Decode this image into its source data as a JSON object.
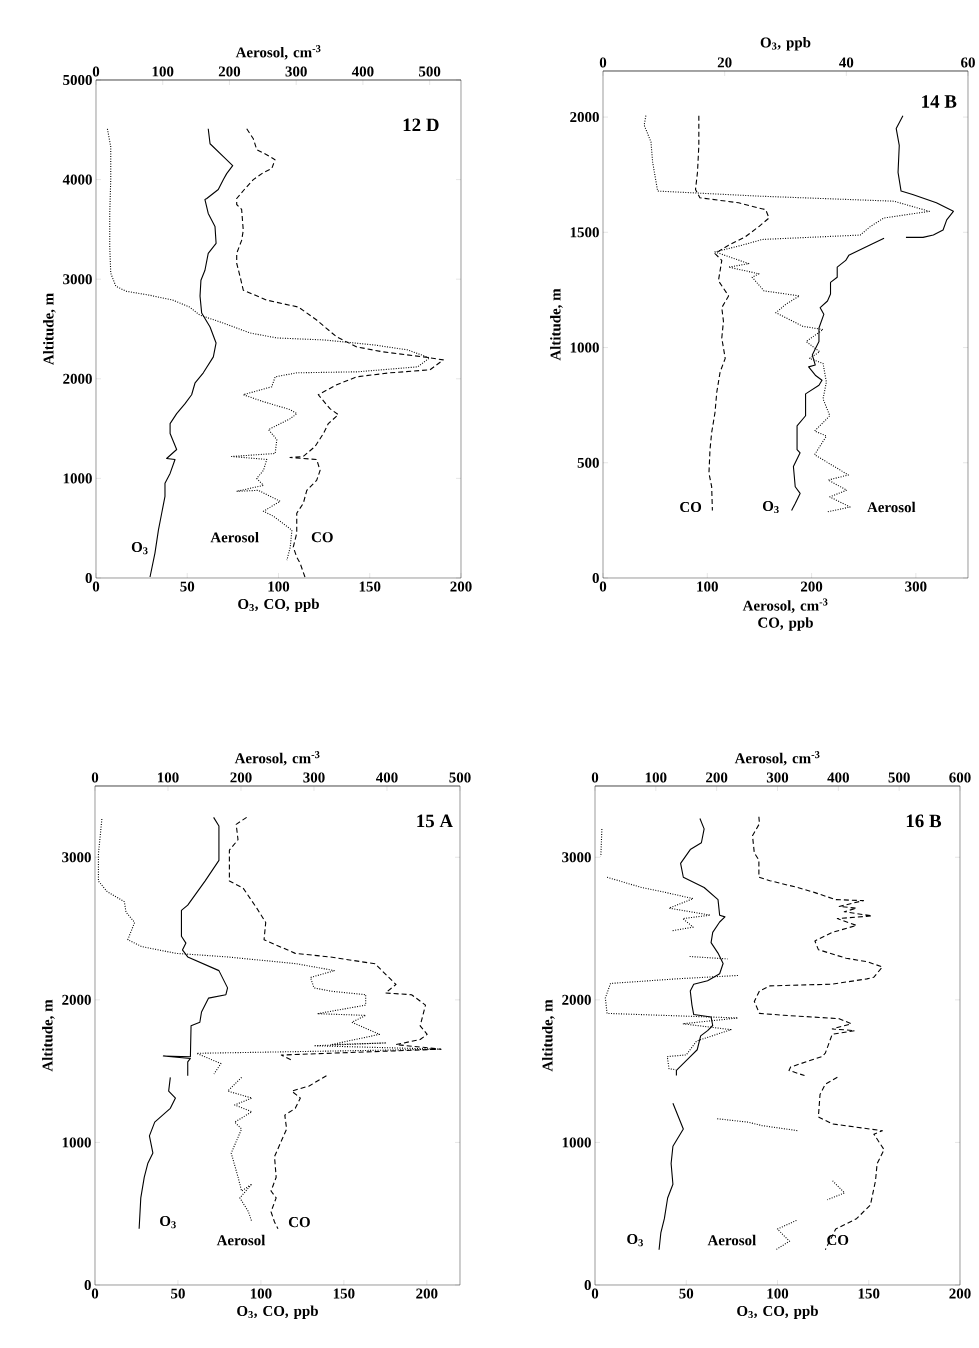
{
  "chart_data": [
    {
      "type": "line",
      "annotations": [
        "12 D"
      ],
      "xlabel": "O$_{3}$, CO, ppb",
      "x2label": "Aerosol, cm$^{-3}$",
      "ylabel": "Altitude, m",
      "xlim": [
        0,
        200
      ],
      "xticks": [
        0,
        50,
        100,
        150,
        200
      ],
      "x2lim": [
        0,
        547
      ],
      "x2ticks": [
        0,
        100,
        200,
        300,
        400,
        500
      ],
      "ylim": [
        0,
        5000
      ],
      "yticks": [
        0,
        1000,
        2000,
        3000,
        4000,
        5000
      ],
      "series": [
        {
          "name": "O$_{3}$",
          "color": "#000000",
          "line_style": "solid",
          "x": [
            61.5,
            62.5,
            69.8,
            74.9,
            71.6,
            69.8,
            67.0,
            60.7,
            59.7,
            61.5,
            65.2,
            65.8,
            61.5,
            59.7,
            57.5,
            57.0,
            57.9,
            62.5,
            65.8,
            64.3,
            58.8,
            54.3,
            52.4,
            48.8,
            44.2,
            40.6,
            40.6,
            44.2,
            38.7,
            43.3,
            40.6,
            37.8,
            37.8,
            36.0,
            34.2,
            32.3,
            29.6
          ],
          "values": [
            4510,
            4360,
            4230,
            4140,
            4060,
            4000,
            3900,
            3810,
            3800,
            3660,
            3530,
            3360,
            3260,
            3090,
            2990,
            2830,
            2660,
            2520,
            2360,
            2220,
            2060,
            1960,
            1840,
            1750,
            1650,
            1550,
            1450,
            1290,
            1200,
            1190,
            1050,
            950,
            820,
            650,
            480,
            250,
            10
          ]
        },
        {
          "name": "CO",
          "color": "#000000",
          "line_style": "dashed",
          "x": [
            82.6,
            86.2,
            88.1,
            93.5,
            98.1,
            96.3,
            91.7,
            86.2,
            81.7,
            77.1,
            77.1,
            79.8,
            80.7,
            79.8,
            77.1,
            77.1,
            78.9,
            80.7,
            93.5,
            110.9,
            120.9,
            131.9,
            142.9,
            157.4,
            179.4,
            190.3,
            183.0,
            161.1,
            142.9,
            131.9,
            121.8,
            128.2,
            132.8,
            127.3,
            124.6,
            120.0,
            113.6,
            106.3,
            120.9,
            122.8,
            120.9,
            115.5,
            113.6,
            110.0,
            110.0,
            108.1,
            110.0,
            111.8,
            114.5
          ],
          "values": [
            4510,
            4410,
            4300,
            4250,
            4200,
            4110,
            4070,
            4000,
            3910,
            3810,
            3750,
            3700,
            3490,
            3390,
            3260,
            3160,
            3030,
            2890,
            2790,
            2720,
            2590,
            2420,
            2320,
            2270,
            2220,
            2190,
            2090,
            2060,
            2020,
            1940,
            1840,
            1700,
            1640,
            1550,
            1450,
            1320,
            1220,
            1210,
            1190,
            1080,
            980,
            880,
            750,
            650,
            450,
            310,
            210,
            150,
            10
          ]
        },
        {
          "name": "Aerosol",
          "color": "#000000",
          "line_style": "dotted",
          "axis": "x2",
          "x": [
            17.1,
            22.1,
            22.1,
            20.6,
            20.6,
            22.1,
            29.7,
            44.7,
            79.9,
            115.1,
            140.3,
            155.4,
            190.6,
            230.8,
            271.0,
            341.4,
            416.8,
            467.0,
            499.8,
            482.1,
            391.6,
            301.1,
            268.5,
            263.4,
            220.7,
            250.9,
            291.1,
            301.1,
            291.1,
            258.4,
            271.0,
            268.5,
            203.1,
            255.9,
            250.9,
            240.8,
            250.9,
            210.6,
            243.3,
            276.0,
            250.9,
            266.0,
            293.6,
            291.1,
            286.1
          ],
          "values": [
            4510,
            4330,
            4000,
            3660,
            3330,
            3060,
            2930,
            2880,
            2840,
            2790,
            2720,
            2640,
            2560,
            2460,
            2410,
            2390,
            2340,
            2290,
            2210,
            2120,
            2070,
            2060,
            2020,
            1920,
            1840,
            1770,
            1690,
            1650,
            1600,
            1490,
            1390,
            1250,
            1220,
            1190,
            1080,
            1000,
            930,
            870,
            880,
            770,
            670,
            620,
            480,
            310,
            180
          ]
        }
      ]
    },
    {
      "type": "line",
      "annotations": [
        "14 B"
      ],
      "xlabel": "Aerosol, cm$^{-3}$ CO, ppb",
      "x2label": "O$_{3}$, ppb",
      "ylabel": "Altitude, m",
      "xlim": [
        0,
        350
      ],
      "xticks": [
        0,
        100,
        200,
        300
      ],
      "x2lim": [
        0,
        60
      ],
      "x2ticks": [
        0,
        20,
        40,
        60
      ],
      "ylim": [
        0,
        2200
      ],
      "yticks": [
        0,
        500,
        1000,
        1500,
        2000
      ],
      "series": [
        {
          "name": "O$_{3}$",
          "color": "#000000",
          "line_style": "solid",
          "axis": "x2",
          "x": [
            49.3,
            48.2,
            48.7,
            48.5,
            49.0,
            50.9,
            54.8,
            57.6,
            56.5,
            55.9,
            54.3,
            52.6,
            49.8,
            null,
            46.2,
            43.8,
            40.4,
            39.9,
            38.5,
            38.5,
            37.4,
            37.4,
            36.9,
            35.7,
            36.3,
            35.5,
            35.5,
            34.4,
            34.9,
            33.8,
            34.9,
            36.0,
            35.5,
            33.3,
            33.3,
            31.9,
            31.9,
            32.4,
            31.3,
            31.6,
            32.4,
            31.6,
            31.0
          ],
          "values": [
            2006,
            1950,
            1877,
            1760,
            1679,
            1664,
            1628,
            1591,
            1554,
            1510,
            1488,
            1478,
            1478,
            null,
            1474,
            1444,
            1400,
            1378,
            1349,
            1305,
            1283,
            1232,
            1202,
            1173,
            1144,
            1085,
            1026,
            968,
            924,
            916,
            880,
            858,
            836,
            799,
            704,
            660,
            557,
            543,
            484,
            396,
            367,
            323,
            293
          ]
        },
        {
          "name": "CO",
          "color": "#000000",
          "line_style": "dashed",
          "x": [
            91.9,
            91.9,
            90.6,
            88.7,
            92.9,
            130.1,
            156.0,
            159.2,
            149.5,
            136.6,
            120.4,
            107.4,
            113.9,
            112.3,
            110.7,
            120.4,
            113.9,
            115.5,
            113.9,
            117.2,
            112.3,
            109.1,
            107.4,
            104.2,
            102.6,
            101.6,
            104.2,
            104.9
          ],
          "values": [
            2006,
            1877,
            1760,
            1686,
            1650,
            1628,
            1598,
            1562,
            1525,
            1481,
            1444,
            1408,
            1378,
            1334,
            1290,
            1224,
            1173,
            1114,
            1041,
            953,
            894,
            806,
            718,
            631,
            557,
            455,
            396,
            293
          ]
        },
        {
          "name": "Aerosol",
          "color": "#000000",
          "line_style": "dotted",
          "x": [
            41.1,
            39.5,
            46.0,
            47.6,
            52.4,
            149.5,
            279.0,
            312.9,
            269.3,
            256.3,
            246.6,
            152.8,
            133.3,
            107.4,
            139.8,
            120.4,
            149.5,
            143.0,
            154.4,
            188.3,
            175.4,
            165.7,
            168.9,
            191.6,
            211.0,
            194.8,
            207.8,
            198.1,
            211.0,
            214.2,
            211.0,
            217.5,
            202.9,
            214.2,
            202.9,
            235.3,
            215.9,
            233.7,
            217.5,
            236.9,
            214.2
          ],
          "values": [
            2006,
            1965,
            1892,
            1804,
            1679,
            1657,
            1635,
            1591,
            1562,
            1525,
            1488,
            1469,
            1444,
            1415,
            1364,
            1349,
            1320,
            1305,
            1246,
            1224,
            1188,
            1151,
            1144,
            1092,
            1078,
            1026,
            982,
            953,
            931,
            850,
            777,
            704,
            638,
            616,
            535,
            447,
            425,
            381,
            352,
            308,
            286
          ]
        }
      ]
    },
    {
      "type": "line",
      "annotations": [
        "15 A"
      ],
      "xlabel": "O$_{3}$, CO, ppb",
      "x2label": "Aerosol, cm$^{-3}$",
      "ylabel": "Altitude, m",
      "xlim": [
        0,
        220
      ],
      "xticks": [
        0,
        50,
        100,
        150,
        200
      ],
      "x2lim": [
        0,
        500
      ],
      "x2ticks": [
        0,
        100,
        200,
        300,
        400,
        500
      ],
      "ylim": [
        0,
        3500
      ],
      "yticks": [
        0,
        1000,
        2000,
        3000
      ],
      "series": [
        {
          "name": "O$_{3}$",
          "color": "#000000",
          "line_style": "solid",
          "x": [
            71.5,
            74.7,
            74.7,
            66.3,
            55.9,
            52.1,
            52.1,
            54.8,
            52.7,
            55.9,
            74.7,
            79.9,
            78.9,
            68.4,
            64.2,
            63.2,
            57.9,
            57.5,
            41.2,
            57.5,
            55.9,
            55.9,
            null,
            45.4,
            44.4,
            48.5,
            45.4,
            36.0,
            32.8,
            34.9,
            31.8,
            29.7,
            27.6,
            26.6
          ],
          "values": [
            3280,
            3219,
            2978,
            2833,
            2664,
            2628,
            2446,
            2398,
            2350,
            2301,
            2205,
            2084,
            2036,
            2012,
            1915,
            1843,
            1818,
            1601,
            1606,
            1589,
            1565,
            1468,
            null,
            1456,
            1360,
            1311,
            1239,
            1142,
            1046,
            925,
            852,
            756,
            611,
            394
          ]
        },
        {
          "name": "CO",
          "color": "#000000",
          "line_style": "dashed",
          "x": [
            91.4,
            85.1,
            86.2,
            81.0,
            81.0,
            89.3,
            97.7,
            102.9,
            101.9,
            120.7,
            141.6,
            168.8,
            181.4,
            175.1,
            190.8,
            199.2,
            196.0,
            200.2,
            196.0,
            181.4,
            208.6,
            112.3,
            118.6,
            null,
            139.5,
            129.1,
            118.6,
            123.8,
            120.7,
            114.4,
            115.5,
            108.2,
            109.2,
            106.1,
            109.2,
            106.1,
            108.2,
            110.3
          ],
          "values": [
            3280,
            3231,
            3123,
            3050,
            2833,
            2784,
            2640,
            2543,
            2422,
            2326,
            2301,
            2253,
            2108,
            2048,
            2036,
            1963,
            1818,
            1758,
            1722,
            1686,
            1654,
            1613,
            1577,
            null,
            1468,
            1396,
            1360,
            1311,
            1239,
            1191,
            1094,
            901,
            756,
            659,
            611,
            514,
            442,
            394
          ]
        },
        {
          "name": "Aerosol",
          "color": "#000000",
          "line_style": "dotted",
          "axis": "x2",
          "x": [
            9.4,
            7.1,
            4.7,
            4.7,
            16.5,
            40.2,
            42.5,
            54.3,
            44.9,
            63.8,
            111.0,
            181.9,
            276.3,
            328.3,
            295.2,
            300.0,
            323.6,
            370.8,
            370.8,
            304.7,
            370.8,
            351.9,
            389.7,
            323.6,
            399.1,
            300.0,
            474.7,
            139.3,
            172.4,
            163.0,
            null,
            200.8,
            181.9,
            214.9,
            191.3,
            214.9,
            191.3,
            200.8,
            186.6,
            196.0,
            200.8,
            214.9,
            198.4,
            210.2,
            214.9
          ],
          "values": [
            3268,
            3147,
            3026,
            2833,
            2760,
            2688,
            2615,
            2543,
            2422,
            2374,
            2326,
            2301,
            2253,
            2205,
            2157,
            2084,
            2060,
            2036,
            1963,
            1903,
            1891,
            1843,
            1758,
            1686,
            1698,
            1678,
            1654,
            1625,
            1553,
            1480,
            null,
            1456,
            1360,
            1311,
            1263,
            1215,
            1142,
            1094,
            925,
            756,
            659,
            708,
            611,
            514,
            442
          ]
        }
      ]
    },
    {
      "type": "line",
      "annotations": [
        "16 B"
      ],
      "xlabel": "O$_{3}$, CO, ppb",
      "x2label": "Aerosol, cm$^{-3}$",
      "ylabel": "Altitude, m",
      "xlim": [
        0,
        200
      ],
      "xticks": [
        0,
        50,
        100,
        150,
        200
      ],
      "x2lim": [
        0,
        600
      ],
      "x2ticks": [
        0,
        100,
        200,
        300,
        400,
        500,
        600
      ],
      "ylim": [
        0,
        3500
      ],
      "yticks": [
        0,
        1000,
        2000,
        3000
      ],
      "series": [
        {
          "name": "O$_{3}$",
          "color": "#000000",
          "line_style": "solid",
          "x": [
            57.5,
            59.8,
            58.3,
            52.2,
            46.9,
            48.4,
            59.8,
            67.4,
            68.3,
            71.2,
            68.3,
            64.5,
            63.6,
            67.4,
            70.2,
            68.3,
            61.7,
            54.1,
            52.2,
            53.1,
            54.1,
            63.6,
            64.5,
            61.7,
            57.9,
            56.0,
            52.2,
            44.6,
            44.6,
            null,
            42.7,
            48.4,
            42.7,
            41.7,
            42.7,
            39.8,
            38.0,
            36.1,
            35.1
          ],
          "values": [
            3272,
            3199,
            3102,
            3054,
            2957,
            2860,
            2788,
            2703,
            2594,
            2582,
            2546,
            2473,
            2401,
            2328,
            2255,
            2183,
            2134,
            2110,
            2062,
            1965,
            1897,
            1880,
            1820,
            1784,
            1747,
            1650,
            1602,
            1505,
            1469,
            null,
            1275,
            1094,
            973,
            852,
            707,
            610,
            465,
            368,
            247
          ]
        },
        {
          "name": "CO",
          "color": "#000000",
          "line_style": "dashed",
          "x": [
            89.8,
            90.1,
            86.3,
            87.3,
            89.8,
            89.8,
            95.8,
            111.0,
            120.5,
            131.9,
            147.1,
            133.8,
            143.3,
            136.6,
            151.8,
            132.8,
            143.3,
            130.0,
            120.5,
            122.4,
            137.6,
            149.0,
            157.5,
            152.8,
            149.0,
            130.0,
            95.8,
            90.1,
            87.3,
            90.1,
            103.4,
            133.8,
            140.4,
            130.0,
            142.3,
            130.0,
            126.2,
            124.3,
            107.2,
            106.3,
            114.8,
            null,
            132.8,
            126.2,
            123.3,
            122.4,
            130.0,
            157.5,
            152.8,
            158.4,
            154.6,
            153.7,
            150.9,
            143.3,
            131.9,
            130.0,
            126.2
          ],
          "values": [
            3284,
            3236,
            3151,
            3030,
            2981,
            2860,
            2836,
            2788,
            2752,
            2703,
            2696,
            2655,
            2643,
            2618,
            2589,
            2570,
            2522,
            2473,
            2413,
            2352,
            2292,
            2268,
            2231,
            2159,
            2147,
            2110,
            2098,
            2062,
            1989,
            1905,
            1892,
            1868,
            1832,
            1796,
            1784,
            1759,
            1626,
            1602,
            1529,
            1505,
            1469,
            null,
            1457,
            1408,
            1336,
            1179,
            1130,
            1082,
            1058,
            949,
            852,
            731,
            561,
            465,
            392,
            344,
            247
          ]
        },
        {
          "name": "Aerosol",
          "color": "#000000",
          "line_style": "dotted",
          "axis": "x2",
          "x": [
            11.3,
            9.6,
            null,
            19.8,
            76.4,
            104.7,
            161.3,
            121.7,
            189.6,
            144.3,
            161.3,
            127.3,
            null,
            155.6,
            217.9,
            null,
            234.9,
            133.0,
            25.5,
            17.0,
            19.8,
            234.9,
            144.3,
            223.5,
            166.9,
            150.0,
            118.8,
            121.7,
            133.0,
            null,
            200.9,
            251.8,
            274.5,
            333.9,
            null,
            390.5,
            410.3,
            382.0,
            null,
            331.1,
            299.9,
            319.8,
            297.1
          ],
          "values": [
            3199,
            3006,
            null,
            2860,
            2788,
            2764,
            2710,
            2643,
            2594,
            2570,
            2510,
            2485,
            null,
            2304,
            2287,
            null,
            2171,
            2147,
            2115,
            2013,
            1905,
            1873,
            1832,
            1791,
            1711,
            1614,
            1602,
            1517,
            1510,
            null,
            1166,
            1142,
            1118,
            1082,
            null,
            731,
            646,
            598,
            null,
            453,
            392,
            307,
            247
          ]
        }
      ]
    }
  ]
}
